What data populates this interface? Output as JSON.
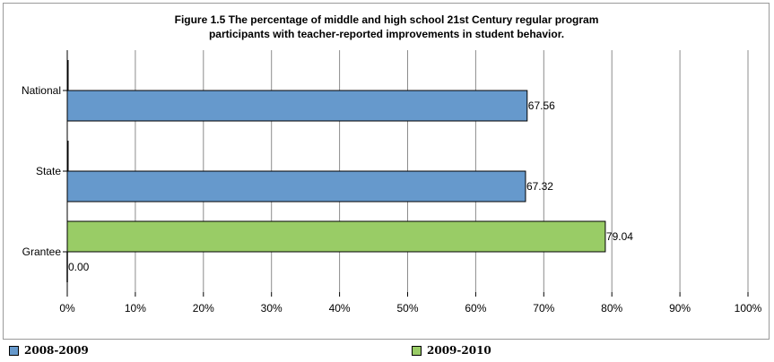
{
  "chart_data": {
    "type": "bar",
    "orientation": "horizontal",
    "title": [
      "Figure 1.5 The percentage of middle and high school 21st Century regular program",
      "participants with teacher-reported improvements in student behavior."
    ],
    "categories": [
      "National",
      "State",
      "Grantee"
    ],
    "series": [
      {
        "name": "2008-2009",
        "color": "#6699cc",
        "values": [
          67.56,
          67.32,
          0.0
        ],
        "labels": [
          "67.56",
          "67.32",
          "0.00"
        ]
      },
      {
        "name": "2009-2010",
        "color": "#99cc66",
        "values": [
          null,
          null,
          79.04
        ],
        "labels": [
          "",
          "",
          "79.04"
        ]
      }
    ],
    "xlim": [
      0,
      100
    ],
    "x_ticks": [
      0,
      10,
      20,
      30,
      40,
      50,
      60,
      70,
      80,
      90,
      100
    ],
    "x_tick_labels": [
      "0%",
      "10%",
      "20%",
      "30%",
      "40%",
      "50%",
      "60%",
      "70%",
      "80%",
      "90%",
      "100%"
    ],
    "grid": "vertical",
    "legend_position": "bottom"
  }
}
